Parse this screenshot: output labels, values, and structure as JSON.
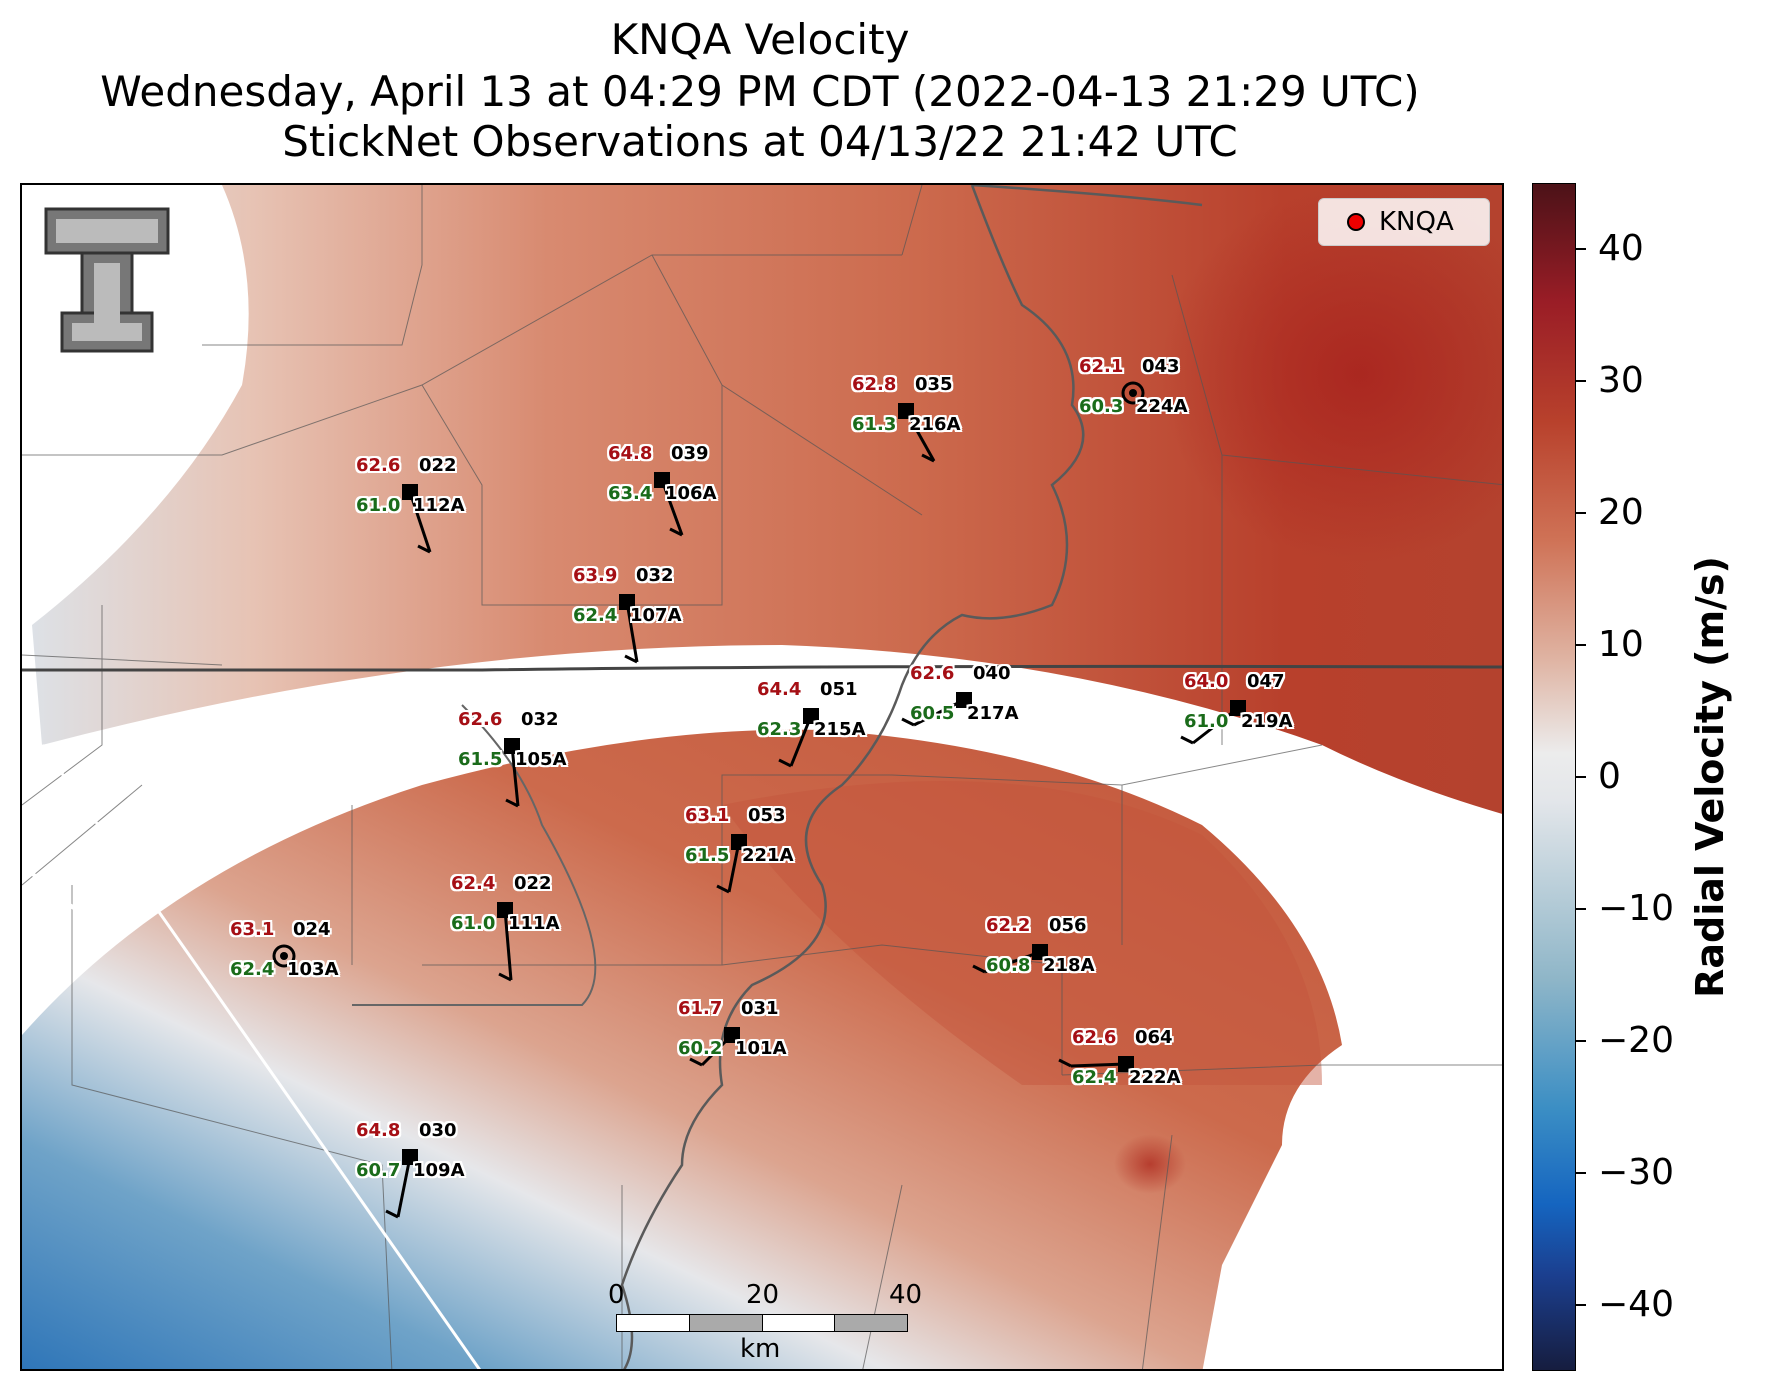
{
  "title": {
    "line1": "KNQA Velocity",
    "line2": "Wednesday, April 13 at 04:29 PM CDT (2022-04-13 21:29 UTC)",
    "line3": "StickNet Observations at 04/13/22 21:42 UTC"
  },
  "legend": {
    "label": "KNQA",
    "marker_color": "#e00000"
  },
  "colorbar": {
    "label": "Radial Velocity (m/s)",
    "ticks": [
      "40",
      "30",
      "20",
      "10",
      "0",
      "−10",
      "−20",
      "−30",
      "−40"
    ],
    "range": [
      -45,
      45
    ]
  },
  "scale_bar": {
    "labels": [
      "0",
      "20",
      "40"
    ],
    "unit": "km"
  },
  "logo": {
    "name": "texas-tech-double-t-logo"
  },
  "stations": [
    {
      "temp": "62.6",
      "dir": "022",
      "dew": "61.0",
      "id": "112A"
    },
    {
      "temp": "64.8",
      "dir": "039",
      "dew": "63.4",
      "id": "106A"
    },
    {
      "temp": "62.8",
      "dir": "035",
      "dew": "61.3",
      "id": "216A"
    },
    {
      "temp": "62.1",
      "dir": "043",
      "dew": "60.3",
      "id": "224A"
    },
    {
      "temp": "63.9",
      "dir": "032",
      "dew": "62.4",
      "id": "107A"
    },
    {
      "temp": "64.4",
      "dir": "051",
      "dew": "62.3",
      "id": "215A"
    },
    {
      "temp": "62.6",
      "dir": "040",
      "dew": "60.5",
      "id": "217A"
    },
    {
      "temp": "64.0",
      "dir": "047",
      "dew": "61.0",
      "id": "219A"
    },
    {
      "temp": "62.6",
      "dir": "032",
      "dew": "61.5",
      "id": "105A"
    },
    {
      "temp": "63.1",
      "dir": "053",
      "dew": "61.5",
      "id": "221A"
    },
    {
      "temp": "62.4",
      "dir": "022",
      "dew": "61.0",
      "id": "111A"
    },
    {
      "temp": "63.1",
      "dir": "024",
      "dew": "62.4",
      "id": "103A"
    },
    {
      "temp": "62.2",
      "dir": "056",
      "dew": "60.8",
      "id": "218A"
    },
    {
      "temp": "61.7",
      "dir": "031",
      "dew": "60.2",
      "id": "101A"
    },
    {
      "temp": "62.6",
      "dir": "064",
      "dew": "62.4",
      "id": "222A"
    },
    {
      "temp": "64.8",
      "dir": "030",
      "dew": "60.7",
      "id": "109A"
    }
  ]
}
